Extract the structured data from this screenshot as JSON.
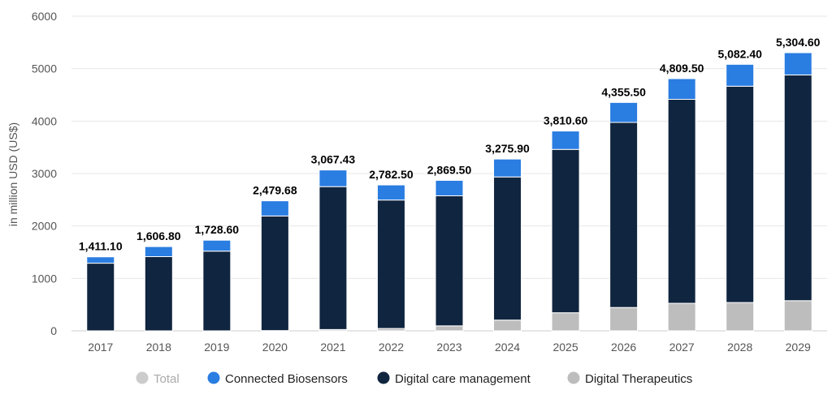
{
  "chart_data": {
    "type": "bar",
    "stacked": true,
    "ylabel": "in million USD (US$)",
    "ylim": [
      0,
      6000
    ],
    "yticks": [
      0,
      1000,
      2000,
      3000,
      4000,
      5000,
      6000
    ],
    "grid": true,
    "legend_position": "bottom",
    "categories": [
      "2017",
      "2018",
      "2019",
      "2020",
      "2021",
      "2022",
      "2023",
      "2024",
      "2025",
      "2026",
      "2027",
      "2028",
      "2029"
    ],
    "totals": [
      "1,411.10",
      "1,606.80",
      "1,728.60",
      "2,479.68",
      "3,067.43",
      "2,782.50",
      "2,869.50",
      "3,275.90",
      "3,810.60",
      "4,355.50",
      "4,809.50",
      "5,082.40",
      "5,304.60"
    ],
    "series": [
      {
        "name": "Digital Therapeutics",
        "color": "#bdbdbd",
        "values": [
          0,
          0,
          0,
          5,
          25,
          45,
          95,
          205,
          345,
          445,
          525,
          540,
          575
        ]
      },
      {
        "name": "Digital care management",
        "color": "#10253f",
        "values": [
          1290,
          1415,
          1520,
          2185,
          2725,
          2450,
          2480,
          2730,
          3115,
          3530,
          3890,
          4125,
          4305
        ]
      },
      {
        "name": "Connected Biosensors",
        "color": "#2a7de1",
        "values": [
          121.1,
          191.8,
          208.6,
          289.68,
          317.43,
          287.5,
          294.5,
          340.9,
          350.6,
          380.5,
          394.5,
          417.4,
          424.6
        ]
      }
    ],
    "legend": [
      {
        "name": "Total",
        "color": "#cccccc",
        "muted": true
      },
      {
        "name": "Connected Biosensors",
        "color": "#2a7de1",
        "muted": false
      },
      {
        "name": "Digital care management",
        "color": "#10253f",
        "muted": false
      },
      {
        "name": "Digital Therapeutics",
        "color": "#bdbdbd",
        "muted": false
      }
    ]
  }
}
